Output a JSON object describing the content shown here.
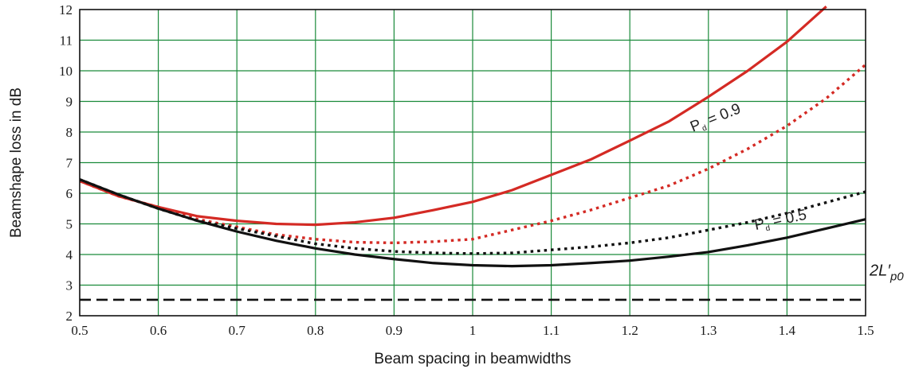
{
  "chart_data": {
    "type": "line",
    "xlabel": "Beam spacing in beamwidths",
    "ylabel": "Beamshape loss in dB",
    "xlim": [
      0.5,
      1.5
    ],
    "ylim": [
      2,
      12
    ],
    "xticks": [
      "0.5",
      "0.6",
      "0.7",
      "0.8",
      "0.9",
      "1",
      "1.1",
      "1.2",
      "1.3",
      "1.4",
      "1.5"
    ],
    "yticks": [
      "2",
      "3",
      "4",
      "5",
      "6",
      "7",
      "8",
      "9",
      "10",
      "11",
      "12"
    ],
    "grid": true,
    "colors": {
      "grid": "#1a8a3a",
      "red": "#d42a24",
      "black": "#111111"
    },
    "series": [
      {
        "style": "solid",
        "color": "#d42a24",
        "x": [
          0.5,
          0.55,
          0.6,
          0.65,
          0.7,
          0.75,
          0.8,
          0.85,
          0.9,
          0.95,
          1.0,
          1.05,
          1.1,
          1.15,
          1.2,
          1.25,
          1.3,
          1.35,
          1.4,
          1.45
        ],
        "y": [
          6.4,
          5.9,
          5.55,
          5.25,
          5.1,
          5.0,
          4.97,
          5.05,
          5.2,
          5.45,
          5.72,
          6.1,
          6.6,
          7.1,
          7.72,
          8.35,
          9.15,
          10.0,
          10.95,
          12.1
        ]
      },
      {
        "style": "dotted",
        "color": "#d42a24",
        "x": [
          0.5,
          0.55,
          0.6,
          0.65,
          0.7,
          0.75,
          0.8,
          0.85,
          0.9,
          0.95,
          1.0,
          1.05,
          1.1,
          1.15,
          1.2,
          1.25,
          1.3,
          1.35,
          1.4,
          1.45,
          1.5
        ],
        "y": [
          6.4,
          5.9,
          5.55,
          5.15,
          4.9,
          4.65,
          4.5,
          4.4,
          4.38,
          4.42,
          4.5,
          4.8,
          5.1,
          5.45,
          5.85,
          6.25,
          6.8,
          7.45,
          8.2,
          9.1,
          10.2
        ]
      },
      {
        "style": "dotted",
        "color": "#111111",
        "x": [
          0.5,
          0.55,
          0.6,
          0.65,
          0.7,
          0.75,
          0.8,
          0.85,
          0.9,
          0.95,
          1.0,
          1.05,
          1.1,
          1.15,
          1.2,
          1.25,
          1.3,
          1.35,
          1.4,
          1.45,
          1.5
        ],
        "y": [
          6.45,
          5.95,
          5.5,
          5.1,
          4.85,
          4.6,
          4.35,
          4.2,
          4.1,
          4.05,
          4.03,
          4.05,
          4.15,
          4.25,
          4.38,
          4.55,
          4.8,
          5.05,
          5.35,
          5.7,
          6.05
        ]
      },
      {
        "style": "solid",
        "color": "#111111",
        "x": [
          0.5,
          0.55,
          0.6,
          0.65,
          0.7,
          0.75,
          0.8,
          0.85,
          0.9,
          0.95,
          1.0,
          1.05,
          1.1,
          1.15,
          1.2,
          1.25,
          1.3,
          1.35,
          1.4,
          1.45,
          1.5
        ],
        "y": [
          6.45,
          5.95,
          5.5,
          5.1,
          4.75,
          4.45,
          4.2,
          4.0,
          3.85,
          3.72,
          3.65,
          3.62,
          3.65,
          3.72,
          3.8,
          3.93,
          4.08,
          4.3,
          4.55,
          4.85,
          5.15
        ]
      },
      {
        "style": "dashed",
        "color": "#111111",
        "x": [
          0.5,
          1.5
        ],
        "y": [
          2.52,
          2.52
        ]
      }
    ],
    "annotations": [
      {
        "main": "P",
        "sub": "d",
        "rest": " = 0.9",
        "x": 1.28,
        "y": 8.0,
        "angle": -22
      },
      {
        "main": "P",
        "sub": "d",
        "rest": " = 0.5",
        "x": 1.36,
        "y": 4.8,
        "angle": -12
      }
    ],
    "side_label": {
      "main": "2L′",
      "sub": "p0"
    }
  }
}
